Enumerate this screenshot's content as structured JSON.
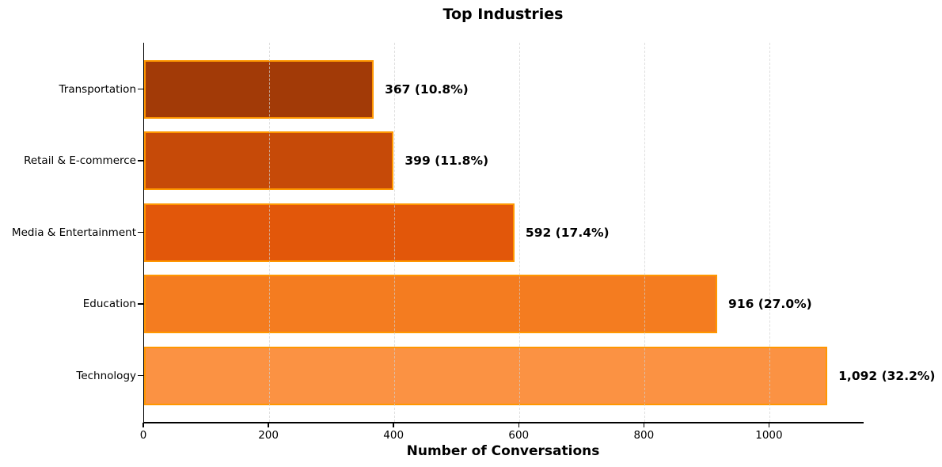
{
  "chart_data": {
    "type": "bar",
    "orientation": "horizontal",
    "title": "Top Industries",
    "xlabel": "Number of Conversations",
    "ylabel": "",
    "categories_top_to_bottom": [
      "Transportation",
      "Retail & E-commerce",
      "Media & Entertainment",
      "Education",
      "Technology"
    ],
    "values_top_to_bottom": [
      367,
      399,
      592,
      916,
      1092
    ],
    "value_labels_top_to_bottom": [
      "367 (10.8%)",
      "399 (11.8%)",
      "592 (17.4%)",
      "916 (27.0%)",
      "1,092 (32.2%)"
    ],
    "percentages_top_to_bottom": [
      10.8,
      11.8,
      17.4,
      27.0,
      32.2
    ],
    "bar_colors_top_to_bottom": [
      "#A23A07",
      "#C64A08",
      "#E2570A",
      "#F47C20",
      "#FB9243"
    ],
    "bar_edge_color": "#FF9700",
    "xlim": [
      0,
      1150
    ],
    "xticks": [
      0,
      200,
      400,
      600,
      800,
      1000
    ],
    "grid": "vertical-dashed",
    "legend_position": "none",
    "background_color": "#FFFFFF",
    "text_color": "#000000"
  }
}
